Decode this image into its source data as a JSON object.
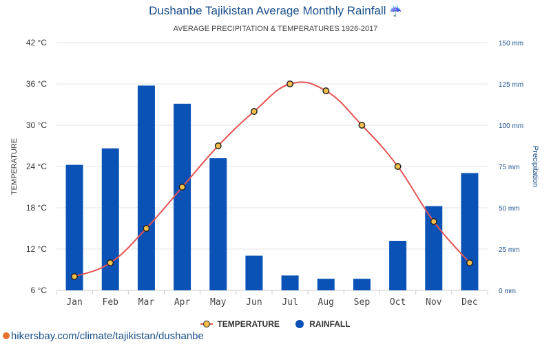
{
  "header": {
    "title": "Dushanbe Tajikistan Average Monthly Rainfall",
    "title_icon": "☔",
    "subtitle": "AVERAGE PRECIPITATION & TEMPERATURES 1926-2017"
  },
  "source_text": "hikersbay.com/climate/tajikistan/dushanbe",
  "legend": {
    "temperature": "TEMPERATURE",
    "rainfall": "RAINFALL"
  },
  "colors": {
    "rainfall_bar": "#0a52b5",
    "temperature_line": "#e55353",
    "temperature_marker": "#f5c04a",
    "title": "#1a4f8a",
    "right_axis": "#1a4f8a"
  },
  "chart_data": {
    "type": "bar",
    "categories": [
      "Jan",
      "Feb",
      "Mar",
      "Apr",
      "May",
      "Jun",
      "Jul",
      "Aug",
      "Sep",
      "Oct",
      "Nov",
      "Dec"
    ],
    "series": [
      {
        "name": "RAINFALL",
        "type": "bar",
        "axis": "right",
        "unit": "mm",
        "values": [
          76,
          86,
          124,
          113,
          80,
          21,
          9,
          7,
          7,
          30,
          51,
          71
        ]
      },
      {
        "name": "TEMPERATURE",
        "type": "line",
        "axis": "left",
        "unit": "°C",
        "values": [
          8,
          10,
          15,
          21,
          27,
          32,
          36,
          35,
          30,
          24,
          16,
          10
        ]
      }
    ],
    "ylabel_left": "TEMPERATURE",
    "ylabel_right": "Precipitation",
    "ylim_left": [
      6,
      42
    ],
    "ylim_right": [
      0,
      150
    ],
    "yticks_left": [
      "6 °C",
      "12 °C",
      "18 °C",
      "24 °C",
      "30 °C",
      "36 °C",
      "42 °C"
    ],
    "yticks_right": [
      "0 mm",
      "25 mm",
      "50 mm",
      "75 mm",
      "100 mm",
      "125 mm",
      "150 mm"
    ],
    "grid": true,
    "legend_position": "bottom"
  }
}
